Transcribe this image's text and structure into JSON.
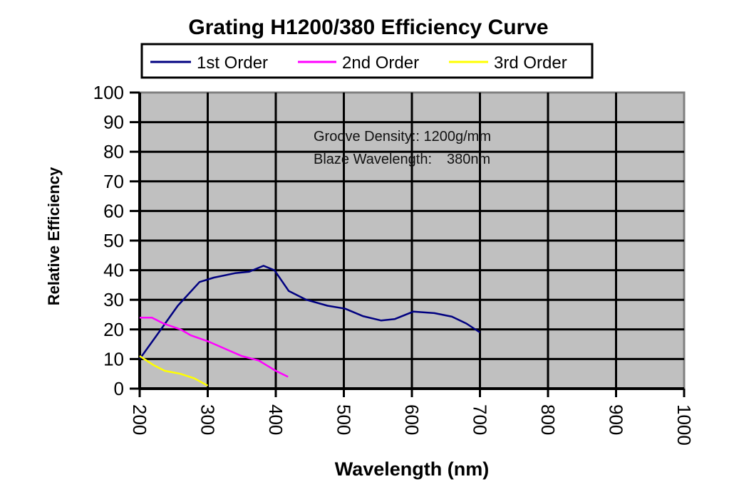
{
  "chart_data": {
    "type": "line",
    "title": "Grating H1200/380 Efficiency Curve",
    "xlabel": "Wavelength (nm)",
    "ylabel": "Relative Efficiency",
    "xlim": [
      200,
      1000
    ],
    "ylim": [
      0,
      100
    ],
    "xticks": [
      "200",
      "300",
      "400",
      "500",
      "600",
      "700",
      "800",
      "900",
      "1000"
    ],
    "yticks": [
      "0",
      "10",
      "20",
      "30",
      "40",
      "50",
      "60",
      "70",
      "80",
      "90",
      "100"
    ],
    "grid": true,
    "legend_position": "top",
    "annotations": [
      "Groove Density:: 1200g/mm",
      "Blaze Wavelength:",
      "380nm"
    ],
    "series": [
      {
        "name": "1st Order",
        "color": "#000080",
        "x": [
          200,
          225,
          256,
          288,
          309,
          340,
          361,
          382,
          398,
          419,
          445,
          476,
          502,
          528,
          555,
          575,
          602,
          633,
          659,
          680,
          700
        ],
        "y": [
          10,
          18,
          28,
          36,
          37.5,
          39,
          39.5,
          41.5,
          40,
          33,
          30,
          28,
          27,
          24.5,
          23,
          23.5,
          26,
          25.5,
          24.3,
          22,
          19
        ]
      },
      {
        "name": "2nd Order",
        "color": "#ff00ff",
        "x": [
          200,
          218,
          235,
          260,
          275,
          300,
          330,
          350,
          375,
          400,
          418
        ],
        "y": [
          24,
          24,
          22,
          20,
          18,
          16,
          13,
          11,
          9.5,
          6,
          4
        ]
      },
      {
        "name": "3rd Order",
        "color": "#ffff00",
        "x": [
          200,
          220,
          237,
          260,
          280,
          300
        ],
        "y": [
          11,
          8,
          6,
          5,
          3.5,
          1
        ]
      }
    ]
  }
}
